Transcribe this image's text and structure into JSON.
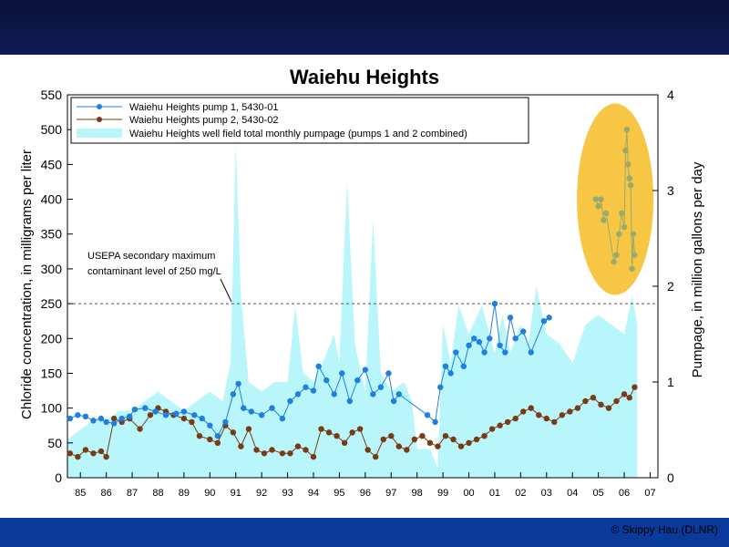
{
  "copyright": "© Skippy Hau (DLNR)",
  "chart_data": {
    "type": "line",
    "title": "Waiehu Heights",
    "ylabel": "Chloride concentration, in milligrams per liter",
    "y2label": "Pumpage, in million gallons per day",
    "ylim": [
      0,
      550
    ],
    "y2lim": [
      0,
      4
    ],
    "xlim": [
      1984.5,
      2007.3
    ],
    "yticks": [
      0,
      50,
      100,
      150,
      200,
      250,
      300,
      350,
      400,
      450,
      500,
      550
    ],
    "y2ticks": [
      0,
      1,
      2,
      3,
      4
    ],
    "xticklabels": [
      "85",
      "86",
      "87",
      "88",
      "89",
      "90",
      "91",
      "92",
      "93",
      "94",
      "95",
      "96",
      "97",
      "98",
      "99",
      "00",
      "01",
      "02",
      "03",
      "04",
      "05",
      "06",
      "07"
    ],
    "legend_position": "top-left",
    "reference_line": {
      "value": 250,
      "label_line1": "USEPA secondary maximum",
      "label_line2": "contaminant level of 250 mg/L"
    },
    "series": [
      {
        "name": "Waiehu Heights pump 1, 5430-01",
        "color": "#1f7fe0",
        "x": [
          1984.6,
          1984.9,
          1985.2,
          1985.5,
          1985.8,
          1986.0,
          1986.3,
          1986.6,
          1986.9,
          1987.1,
          1987.5,
          1987.9,
          1988.3,
          1988.7,
          1989.0,
          1989.4,
          1989.7,
          1990.0,
          1990.3,
          1990.6,
          1990.9,
          1991.1,
          1991.3,
          1991.6,
          1992.0,
          1992.4,
          1992.8,
          1993.1,
          1993.4,
          1993.7,
          1994.0,
          1994.2,
          1994.5,
          1994.8,
          1995.1,
          1995.4,
          1995.7,
          1996.0,
          1996.3,
          1996.6,
          1996.9,
          1997.1,
          1997.3,
          1998.4,
          1998.7,
          1998.9,
          1999.1,
          1999.3,
          1999.5,
          1999.8,
          2000.0,
          2000.2,
          2000.4,
          2000.6,
          2000.8,
          2001.0,
          2001.2,
          2001.4,
          2001.6,
          2001.8,
          2002.1,
          2002.4,
          2002.9,
          2003.1
        ],
        "y": [
          85,
          90,
          88,
          82,
          85,
          80,
          78,
          85,
          88,
          98,
          100,
          95,
          90,
          92,
          95,
          90,
          85,
          75,
          60,
          80,
          120,
          135,
          100,
          95,
          90,
          100,
          85,
          110,
          120,
          130,
          125,
          160,
          140,
          120,
          150,
          110,
          140,
          155,
          120,
          130,
          150,
          110,
          120,
          90,
          80,
          130,
          160,
          150,
          180,
          160,
          190,
          200,
          195,
          180,
          200,
          250,
          190,
          180,
          230,
          200,
          210,
          180,
          225,
          230
        ]
      },
      {
        "name": "Waiehu Heights pump 2, 5430-02",
        "color": "#7a3a12",
        "x": [
          1984.6,
          1984.9,
          1985.2,
          1985.5,
          1985.8,
          1986.0,
          1986.3,
          1986.6,
          1986.9,
          1987.3,
          1987.7,
          1988.0,
          1988.3,
          1988.6,
          1989.0,
          1989.3,
          1989.6,
          1990.0,
          1990.3,
          1990.6,
          1990.9,
          1991.2,
          1991.5,
          1991.8,
          1992.1,
          1992.4,
          1992.8,
          1993.1,
          1993.4,
          1993.7,
          1994.0,
          1994.3,
          1994.6,
          1994.9,
          1995.2,
          1995.5,
          1995.8,
          1996.1,
          1996.4,
          1996.7,
          1997.0,
          1997.3,
          1997.6,
          1997.9,
          1998.2,
          1998.5,
          1998.8,
          1999.1,
          1999.4,
          1999.7,
          2000.0,
          2000.3,
          2000.6,
          2000.9,
          2001.2,
          2001.5,
          2001.8,
          2002.1,
          2002.4,
          2002.7,
          2003.0,
          2003.3,
          2003.6,
          2003.9,
          2004.2,
          2004.5,
          2004.8,
          2005.1,
          2005.4,
          2005.7,
          2006.0,
          2006.2,
          2006.4
        ],
        "y": [
          35,
          30,
          40,
          35,
          38,
          30,
          85,
          80,
          85,
          70,
          90,
          100,
          95,
          90,
          85,
          80,
          60,
          55,
          50,
          75,
          65,
          45,
          70,
          40,
          35,
          40,
          35,
          35,
          45,
          40,
          30,
          70,
          65,
          60,
          50,
          65,
          70,
          40,
          30,
          55,
          60,
          45,
          40,
          55,
          60,
          50,
          45,
          60,
          55,
          45,
          50,
          55,
          60,
          70,
          75,
          80,
          85,
          95,
          100,
          90,
          85,
          80,
          90,
          95,
          100,
          110,
          115,
          105,
          100,
          110,
          120,
          115,
          130
        ]
      },
      {
        "name": "Waiehu Heights well field total monthly pumpage (pumps 1 and 2 combined)",
        "color": "#b8f6fb",
        "axis": "y2",
        "x": [
          1984.5,
          1985.0,
          1985.5,
          1986.0,
          1986.5,
          1987.0,
          1987.5,
          1988.0,
          1988.5,
          1989.0,
          1989.5,
          1990.0,
          1990.5,
          1990.8,
          1991.0,
          1991.2,
          1991.5,
          1992.0,
          1992.5,
          1993.0,
          1993.3,
          1993.6,
          1994.0,
          1994.5,
          1994.8,
          1995.0,
          1995.3,
          1995.6,
          1996.0,
          1996.3,
          1996.6,
          1997.0,
          1997.5,
          1997.8,
          1998.0,
          1998.5,
          1998.8,
          1999.0,
          1999.3,
          1999.6,
          2000.0,
          2000.5,
          2001.0,
          2001.3,
          2001.6,
          2002.0,
          2002.3,
          2002.6,
          2003.0,
          2003.5,
          2004.0,
          2004.5,
          2005.0,
          2005.5,
          2006.0,
          2006.3,
          2006.5
        ],
        "y": [
          0.4,
          0.5,
          0.6,
          0.6,
          0.7,
          0.7,
          0.8,
          0.9,
          0.8,
          0.7,
          0.8,
          0.9,
          0.8,
          1.2,
          3.5,
          1.9,
          1.0,
          0.9,
          1.0,
          1.0,
          1.8,
          1.1,
          1.0,
          1.3,
          1.5,
          1.2,
          3.1,
          1.4,
          0.9,
          2.7,
          1.1,
          0.9,
          1.0,
          0.8,
          0.3,
          0.3,
          0.1,
          1.6,
          1.2,
          1.8,
          1.5,
          1.8,
          1.3,
          1.7,
          1.3,
          1.6,
          1.4,
          2.0,
          1.5,
          1.4,
          1.2,
          1.6,
          1.7,
          1.6,
          1.5,
          1.9,
          1.6
        ]
      }
    ],
    "highlighted_points": {
      "color": "#9aaa6a",
      "x": [
        2004.9,
        2005.0,
        2005.1,
        2005.2,
        2005.3,
        2005.6,
        2005.7,
        2005.8,
        2005.9,
        2006.0,
        2006.05,
        2006.1,
        2006.15,
        2006.2,
        2006.25,
        2006.3,
        2006.35,
        2006.4
      ],
      "y": [
        400,
        390,
        400,
        370,
        380,
        310,
        320,
        350,
        380,
        360,
        470,
        500,
        450,
        430,
        420,
        300,
        350,
        320
      ]
    }
  }
}
